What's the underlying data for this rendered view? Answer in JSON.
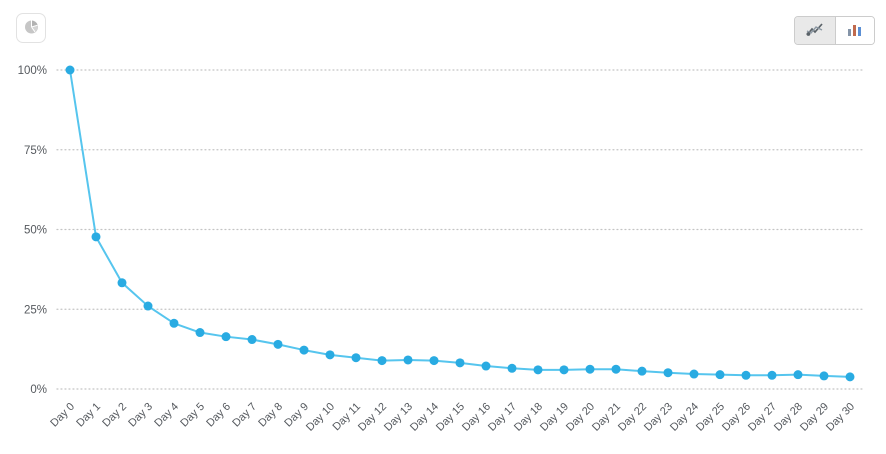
{
  "toolbar": {
    "options_button": {
      "icon": "pie-chart-icon"
    },
    "chart_type_toggle": {
      "line_option": {
        "icon": "line-chart-icon",
        "selected": true
      },
      "bar_option": {
        "icon": "bar-chart-icon",
        "selected": false
      }
    }
  },
  "chart_data": {
    "type": "line",
    "title": "",
    "xlabel": "",
    "ylabel": "",
    "categories": [
      "Day 0",
      "Day 1",
      "Day 2",
      "Day 3",
      "Day 4",
      "Day 5",
      "Day 6",
      "Day 7",
      "Day 8",
      "Day 9",
      "Day 10",
      "Day 11",
      "Day 12",
      "Day 13",
      "Day 14",
      "Day 15",
      "Day 16",
      "Day 17",
      "Day 18",
      "Day 19",
      "Day 20",
      "Day 21",
      "Day 22",
      "Day 23",
      "Day 24",
      "Day 25",
      "Day 26",
      "Day 27",
      "Day 28",
      "Day 29",
      "Day 30"
    ],
    "values": [
      100,
      47.7,
      33.3,
      26,
      20.6,
      17.7,
      16.4,
      15.5,
      14,
      12.2,
      10.7,
      9.8,
      8.9,
      9.1,
      8.9,
      8.2,
      7.2,
      6.5,
      6,
      6,
      6.2,
      6.2,
      5.6,
      5.1,
      4.7,
      4.5,
      4.3,
      4.3,
      4.5,
      4.1,
      3.8
    ],
    "y_ticks": [
      {
        "value": 0,
        "label": "0%"
      },
      {
        "value": 25,
        "label": "25%"
      },
      {
        "value": 50,
        "label": "50%"
      },
      {
        "value": 75,
        "label": "75%"
      },
      {
        "value": 100,
        "label": "100%"
      }
    ],
    "ylim": [
      0,
      100
    ],
    "grid": "horizontal-dotted",
    "legend": "none",
    "line_color": "#56c5ee",
    "point_color": "#29abe2",
    "grid_color": "#c4c4c4",
    "label_color": "#55595e"
  }
}
